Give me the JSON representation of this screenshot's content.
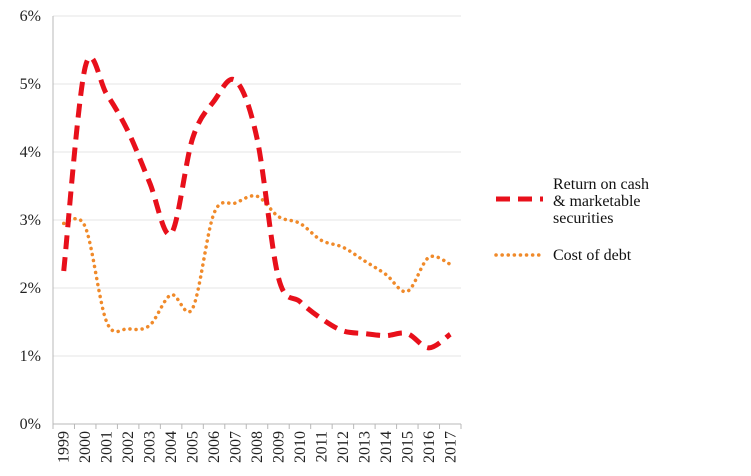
{
  "chart_data": {
    "type": "line",
    "title": "",
    "xlabel": "",
    "ylabel": "",
    "ylim": [
      0,
      6
    ],
    "y_tick_labels": [
      "0%",
      "1%",
      "2%",
      "3%",
      "4%",
      "5%",
      "6%"
    ],
    "grid": "horizontal",
    "legend_position": "right",
    "x": [
      "1999",
      "2000",
      "2001",
      "2002",
      "2003",
      "2004",
      "2005",
      "2006",
      "2007",
      "2008",
      "2009",
      "2010",
      "2011",
      "2012",
      "2013",
      "2014",
      "2015",
      "2016",
      "2017"
    ],
    "series": [
      {
        "name": "Return on cash & marketable securities",
        "legend_lines": [
          "Return on cash",
          "& marketable",
          "securities"
        ],
        "color": "#e8101b",
        "line_style": "dashed",
        "values": [
          2.25,
          5.25,
          4.85,
          4.3,
          3.55,
          2.8,
          4.2,
          4.75,
          5.05,
          4.2,
          2.15,
          1.8,
          1.55,
          1.37,
          1.33,
          1.3,
          1.33,
          1.12,
          1.32
        ]
      },
      {
        "name": "Cost of debt",
        "legend_lines": [
          "Cost of debt"
        ],
        "color": "#f08a2a",
        "line_style": "dotted",
        "values": [
          2.95,
          2.9,
          1.5,
          1.4,
          1.45,
          1.9,
          1.7,
          3.1,
          3.25,
          3.35,
          3.05,
          2.95,
          2.7,
          2.6,
          2.4,
          2.2,
          1.95,
          2.45,
          2.35
        ]
      }
    ]
  }
}
